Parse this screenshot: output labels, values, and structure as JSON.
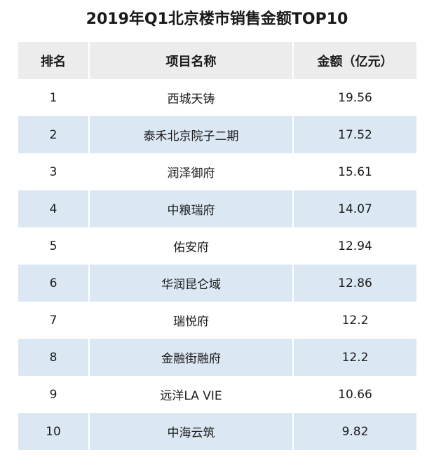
{
  "chart_data": {
    "type": "table",
    "title": "2019年Q1北京楼市销售金额TOP10",
    "columns": [
      "排名",
      "项目名称",
      "金额（亿元）"
    ],
    "rows": [
      {
        "rank": "1",
        "name": "西城天铸",
        "amount": "19.56"
      },
      {
        "rank": "2",
        "name": "泰禾北京院子二期",
        "amount": "17.52"
      },
      {
        "rank": "3",
        "name": "润泽御府",
        "amount": "15.61"
      },
      {
        "rank": "4",
        "name": "中粮瑞府",
        "amount": "14.07"
      },
      {
        "rank": "5",
        "name": "佑安府",
        "amount": "12.94"
      },
      {
        "rank": "6",
        "name": "华润昆仑域",
        "amount": "12.86"
      },
      {
        "rank": "7",
        "name": "瑞悦府",
        "amount": "12.2"
      },
      {
        "rank": "8",
        "name": "金融街融府",
        "amount": "12.2"
      },
      {
        "rank": "9",
        "name": "远洋LA VIE",
        "amount": "10.66"
      },
      {
        "rank": "10",
        "name": "中海云筑",
        "amount": "9.82"
      }
    ]
  },
  "colors": {
    "header_bg": "#ececec",
    "stripe_bg": "#dbe8f4",
    "row_bg": "#ffffff"
  }
}
